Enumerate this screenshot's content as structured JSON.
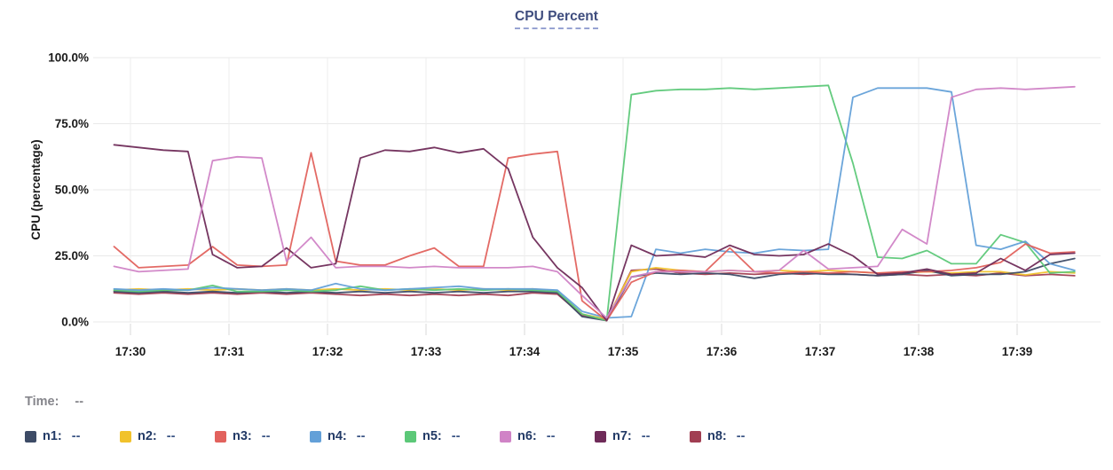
{
  "panel": {
    "time_label": "Time:",
    "time_value": "--"
  },
  "chart_data": {
    "type": "line",
    "title": "CPU Percent",
    "xlabel": "",
    "ylabel": "CPU (percentage)",
    "ylim": [
      0,
      100
    ],
    "grid": true,
    "legend_position": "bottom",
    "legend_value_placeholder": "--",
    "yticks": [
      {
        "label": "100.0%",
        "value": 100
      },
      {
        "label": "75.0%",
        "value": 75
      },
      {
        "label": "50.0%",
        "value": 50
      },
      {
        "label": "25.0%",
        "value": 25
      },
      {
        "label": "0.0%",
        "value": 0
      }
    ],
    "xticks": [
      {
        "label": "17:30",
        "minute": 0
      },
      {
        "label": "17:31",
        "minute": 1
      },
      {
        "label": "17:32",
        "minute": 2
      },
      {
        "label": "17:33",
        "minute": 3
      },
      {
        "label": "17:34",
        "minute": 4
      },
      {
        "label": "17:35",
        "minute": 5
      },
      {
        "label": "17:36",
        "minute": 6
      },
      {
        "label": "17:37",
        "minute": 7
      },
      {
        "label": "17:38",
        "minute": 8
      },
      {
        "label": "17:39",
        "minute": 9
      }
    ],
    "x_start_time": "17:29:50",
    "x_step_seconds": 15,
    "series": [
      {
        "name": "n1",
        "color": "#3d4b66",
        "values": [
          11.5,
          11,
          11.5,
          11,
          11.5,
          11,
          11.5,
          11,
          11.5,
          11,
          11.5,
          11,
          11.5,
          11,
          11.5,
          11,
          11.5,
          11.5,
          11,
          2,
          0.5,
          17,
          18.5,
          18,
          18.5,
          18,
          16.5,
          18,
          18.5,
          18,
          18,
          17.5,
          18,
          19.5,
          17.5,
          18,
          18,
          19,
          22,
          24
        ]
      },
      {
        "name": "n2",
        "color": "#f1c22c",
        "values": [
          12,
          12.5,
          12,
          12.5,
          12,
          12.5,
          12,
          12.5,
          12,
          12.5,
          12,
          12.5,
          12,
          12.5,
          12,
          12.5,
          12,
          12.5,
          11.5,
          3,
          1,
          19,
          20.5,
          19.5,
          19,
          19.5,
          19,
          19.5,
          19,
          19.5,
          19,
          18.5,
          18.5,
          19,
          18.5,
          19,
          19,
          17.8,
          19,
          18.5
        ]
      },
      {
        "name": "n3",
        "color": "#e2625d",
        "values": [
          28.5,
          20.5,
          21,
          21.5,
          28.5,
          21.5,
          21,
          21.5,
          64,
          23,
          21.5,
          21.5,
          25,
          28,
          21,
          21,
          62,
          63.5,
          64.5,
          8,
          0.5,
          15,
          19,
          19.5,
          19,
          28,
          19,
          18.5,
          19,
          18.5,
          19,
          18.5,
          19,
          19,
          19.5,
          20.5,
          22.5,
          29.5,
          26,
          26.5
        ]
      },
      {
        "name": "n4",
        "color": "#63a0d8",
        "values": [
          12.5,
          12,
          12.5,
          12,
          13,
          12.5,
          12,
          12.5,
          12,
          14.5,
          12.5,
          12,
          12.5,
          13,
          13.5,
          12.5,
          12.5,
          12.5,
          12,
          4,
          1.5,
          2,
          27.5,
          26,
          27.5,
          26.5,
          26,
          27.5,
          27,
          27.5,
          85,
          88.5,
          88.5,
          88.5,
          87,
          29,
          27.5,
          30.5,
          22,
          19.5
        ]
      },
      {
        "name": "n5",
        "color": "#5cc878",
        "values": [
          12,
          11.5,
          12,
          12,
          13.8,
          11.5,
          11.5,
          12,
          11.5,
          12,
          13.5,
          12,
          12.5,
          12,
          12.5,
          12,
          12.5,
          12,
          11.5,
          3,
          0.5,
          86,
          87.5,
          88,
          88,
          88.5,
          88,
          88.5,
          89,
          89.5,
          60,
          24.5,
          24,
          27,
          22,
          22,
          33,
          30,
          18.5,
          19
        ]
      },
      {
        "name": "n6",
        "color": "#d083c6",
        "values": [
          21,
          19,
          19.5,
          20,
          61,
          62.5,
          62,
          23,
          32,
          20.5,
          21,
          21,
          20.5,
          21,
          20.5,
          20.5,
          20.5,
          21,
          19,
          10,
          1.5,
          17,
          19,
          19,
          19,
          19.5,
          19,
          19.5,
          27,
          20,
          20.5,
          21,
          35,
          29.5,
          85,
          88,
          88.5,
          88,
          88.5,
          89
        ]
      },
      {
        "name": "n7",
        "color": "#6f2b59",
        "values": [
          67,
          66,
          65,
          64.5,
          25.5,
          20.5,
          21,
          28,
          20.5,
          22,
          62,
          65,
          64.5,
          66,
          64,
          65.5,
          58,
          32,
          20.5,
          13,
          0.5,
          29,
          25,
          25.5,
          24.5,
          29,
          25.5,
          25,
          25.5,
          29.5,
          25,
          18,
          18.5,
          20,
          18,
          18.5,
          24,
          19.5,
          25.5,
          26
        ]
      },
      {
        "name": "n8",
        "color": "#a13e52",
        "values": [
          11,
          10.5,
          11,
          10.5,
          11,
          10.5,
          11,
          10.5,
          11,
          10.5,
          10,
          10.5,
          10,
          10.5,
          10,
          10.5,
          10,
          11,
          10.5,
          2.5,
          0.5,
          19.5,
          20,
          18.5,
          18,
          18.5,
          18,
          18.5,
          18,
          18.5,
          18,
          17.5,
          18,
          17.5,
          18,
          17.5,
          18.5,
          17.5,
          18,
          17.5
        ]
      }
    ],
    "style": {
      "grid_color": "#e9e9e9",
      "tick_color": "#d8d8d8",
      "axis_text_color": "#1a1a1a",
      "title_color": "#3f4d7e",
      "underline_color": "#97a3d2",
      "legend_label_color": "#223a66",
      "legend_value_color": "#3c5585",
      "time_label_color": "#85858b"
    }
  }
}
